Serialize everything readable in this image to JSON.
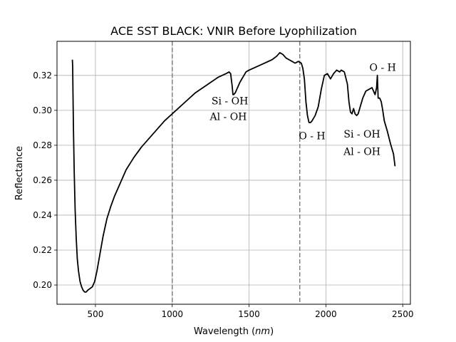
{
  "chart_data": {
    "type": "line",
    "title": "ACE SST BLACK: VNIR Before Lyophilization",
    "xlabel_main": "Wavelength (",
    "xlabel_unit": "nm",
    "xlabel_close": ")",
    "ylabel": "Reflectance",
    "xlim": [
      250,
      2550
    ],
    "ylim": [
      0.189,
      0.3395
    ],
    "xticks": [
      500,
      1000,
      1500,
      2000,
      2500
    ],
    "yticks": [
      0.2,
      0.22,
      0.24,
      0.26,
      0.28,
      0.3,
      0.32
    ],
    "ytick_labels": [
      "0.20",
      "0.22",
      "0.24",
      "0.26",
      "0.28",
      "0.30",
      "0.32"
    ],
    "grid": true,
    "vlines": [
      1000,
      1830
    ],
    "series": [
      {
        "x": [
          350,
          352,
          354,
          357,
          362,
          368,
          375,
          382,
          390,
          400,
          410,
          420,
          430,
          440,
          450,
          465,
          480,
          495,
          510,
          530,
          550,
          575,
          600,
          625,
          650,
          675,
          700,
          750,
          800,
          850,
          900,
          950,
          1000,
          1050,
          1100,
          1150,
          1200,
          1250,
          1300,
          1350,
          1370,
          1380,
          1390,
          1395,
          1400,
          1410,
          1420,
          1440,
          1460,
          1480,
          1500,
          1550,
          1600,
          1650,
          1680,
          1700,
          1720,
          1740,
          1760,
          1780,
          1800,
          1820,
          1840,
          1850,
          1860,
          1870,
          1880,
          1890,
          1900,
          1910,
          1930,
          1950,
          1970,
          1990,
          2010,
          2030,
          2050,
          2070,
          2090,
          2100,
          2120,
          2140,
          2150,
          2160,
          2170,
          2180,
          2190,
          2200,
          2210,
          2220,
          2240,
          2260,
          2280,
          2300,
          2310,
          2320,
          2330,
          2335,
          2340,
          2350,
          2360,
          2370,
          2380,
          2400,
          2420,
          2440,
          2450
        ],
        "y": [
          0.329,
          0.325,
          0.31,
          0.29,
          0.265,
          0.243,
          0.227,
          0.215,
          0.208,
          0.202,
          0.199,
          0.197,
          0.196,
          0.196,
          0.197,
          0.198,
          0.199,
          0.202,
          0.208,
          0.218,
          0.228,
          0.238,
          0.245,
          0.251,
          0.256,
          0.261,
          0.266,
          0.273,
          0.279,
          0.284,
          0.289,
          0.294,
          0.298,
          0.302,
          0.306,
          0.31,
          0.313,
          0.316,
          0.319,
          0.321,
          0.322,
          0.321,
          0.314,
          0.309,
          0.309,
          0.31,
          0.312,
          0.316,
          0.319,
          0.322,
          0.323,
          0.325,
          0.327,
          0.329,
          0.331,
          0.333,
          0.332,
          0.33,
          0.329,
          0.328,
          0.327,
          0.328,
          0.327,
          0.324,
          0.318,
          0.305,
          0.297,
          0.293,
          0.293,
          0.294,
          0.297,
          0.302,
          0.312,
          0.32,
          0.321,
          0.318,
          0.321,
          0.323,
          0.322,
          0.323,
          0.322,
          0.315,
          0.305,
          0.299,
          0.298,
          0.301,
          0.298,
          0.297,
          0.298,
          0.301,
          0.307,
          0.311,
          0.312,
          0.313,
          0.311,
          0.309,
          0.313,
          0.32,
          0.307,
          0.307,
          0.305,
          0.3,
          0.294,
          0.288,
          0.281,
          0.275,
          0.268
        ]
      }
    ],
    "annotations": [
      {
        "text": "Si - OH",
        "x": 1375,
        "y": 0.3035
      },
      {
        "text": "Al - OH",
        "x": 1365,
        "y": 0.2945
      },
      {
        "text": "O - H",
        "x": 1910,
        "y": 0.2835
      },
      {
        "text": "Si - OH",
        "x": 2235,
        "y": 0.2845
      },
      {
        "text": "Al - OH",
        "x": 2235,
        "y": 0.2745
      },
      {
        "text": "O - H",
        "x": 2370,
        "y": 0.3225
      }
    ]
  }
}
